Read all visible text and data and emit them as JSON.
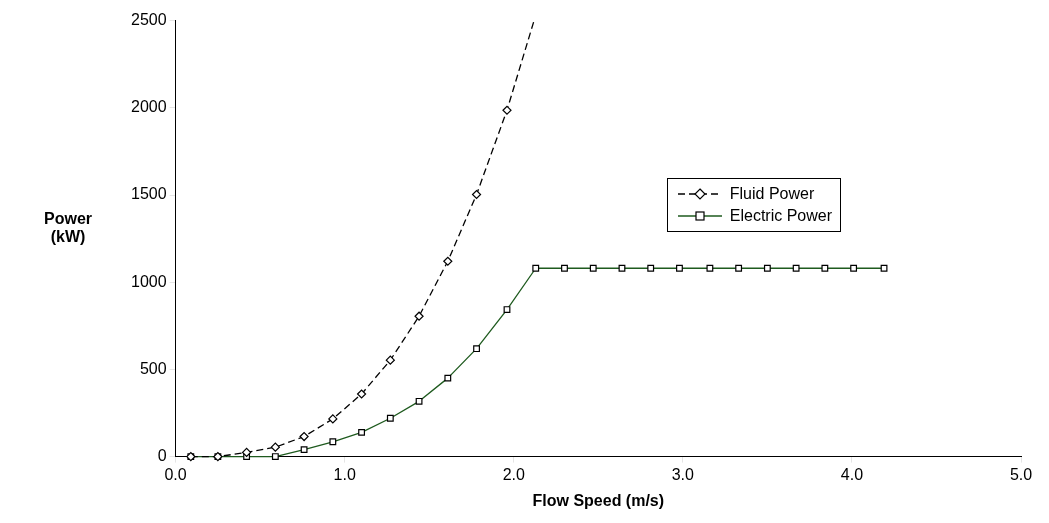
{
  "chart_data": {
    "type": "line",
    "xlabel": "Flow Speed (m/s)",
    "ylabel": "Power\n(kW)",
    "xlim": [
      0,
      5
    ],
    "xticks": [
      {
        "value": 0,
        "label": "0.0"
      },
      {
        "value": 1,
        "label": "1.0"
      },
      {
        "value": 2,
        "label": "2.0"
      },
      {
        "value": 3,
        "label": "3.0"
      },
      {
        "value": 4,
        "label": "4.0"
      },
      {
        "value": 5,
        "label": "5.0"
      }
    ],
    "ylim": [
      0,
      2500
    ],
    "yticks": [
      0,
      500,
      1000,
      1500,
      2000,
      2500
    ],
    "grid": false,
    "legend": "right",
    "series": [
      {
        "name": "Fluid Power",
        "color": "#000000",
        "line_style": "dashed",
        "marker": "diamond",
        "x": [
          0.09,
          0.25,
          0.42,
          0.59,
          0.76,
          0.93,
          1.1,
          1.27,
          1.44,
          1.61,
          1.78,
          1.96,
          2.12
        ],
        "values": [
          0,
          0,
          24,
          54,
          115,
          216,
          359,
          553,
          805,
          1120,
          1503,
          1986,
          2500
        ]
      },
      {
        "name": "Electric Power",
        "color": "#1e5a1e",
        "line_style": "solid",
        "marker": "square",
        "x": [
          0.09,
          0.25,
          0.42,
          0.59,
          0.76,
          0.93,
          1.1,
          1.27,
          1.44,
          1.61,
          1.78,
          1.96,
          2.13,
          2.3,
          2.47,
          2.64,
          2.81,
          2.98,
          3.16,
          3.33,
          3.5,
          3.67,
          3.84,
          4.01,
          4.19
        ],
        "values": [
          0,
          0,
          0,
          0,
          40,
          85,
          139,
          220,
          317,
          450,
          619,
          843,
          1080,
          1080,
          1080,
          1080,
          1080,
          1080,
          1080,
          1080,
          1080,
          1080,
          1080,
          1080,
          1080
        ]
      }
    ]
  }
}
